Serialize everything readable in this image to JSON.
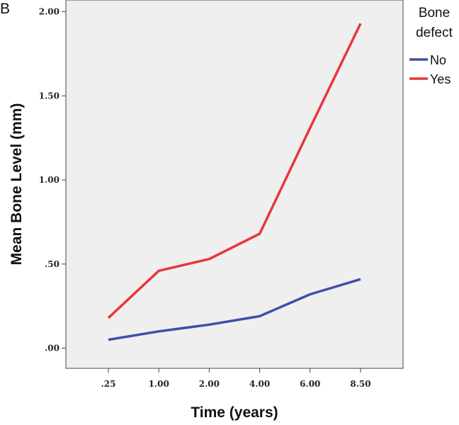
{
  "panel_label": "B",
  "chart_data": {
    "type": "line",
    "title": "",
    "xlabel": "Time (years)",
    "ylabel": "Mean Bone Level (mm)",
    "categories": [
      ".25",
      "1.00",
      "2.00",
      "4.00",
      "6.00",
      "8.50"
    ],
    "y_ticks": [
      {
        "value": 0,
        "label": ".00"
      },
      {
        "value": 0.5,
        "label": ".50"
      },
      {
        "value": 1.0,
        "label": "1.00"
      },
      {
        "value": 1.5,
        "label": "1.50"
      },
      {
        "value": 2.0,
        "label": "2.00"
      }
    ],
    "ylim": [
      -0.12,
      2.07
    ],
    "grid": false,
    "background": "#efefef",
    "legend": {
      "title_lines": [
        "Bone",
        "defect"
      ],
      "placement": "right"
    },
    "series": [
      {
        "name": "No",
        "color": "#3f4fa8",
        "values": [
          0.05,
          0.1,
          0.14,
          0.19,
          0.32,
          0.41
        ]
      },
      {
        "name": "Yes",
        "color": "#e8363e",
        "values": [
          0.18,
          0.46,
          0.53,
          0.68,
          1.31,
          1.93
        ]
      }
    ]
  }
}
